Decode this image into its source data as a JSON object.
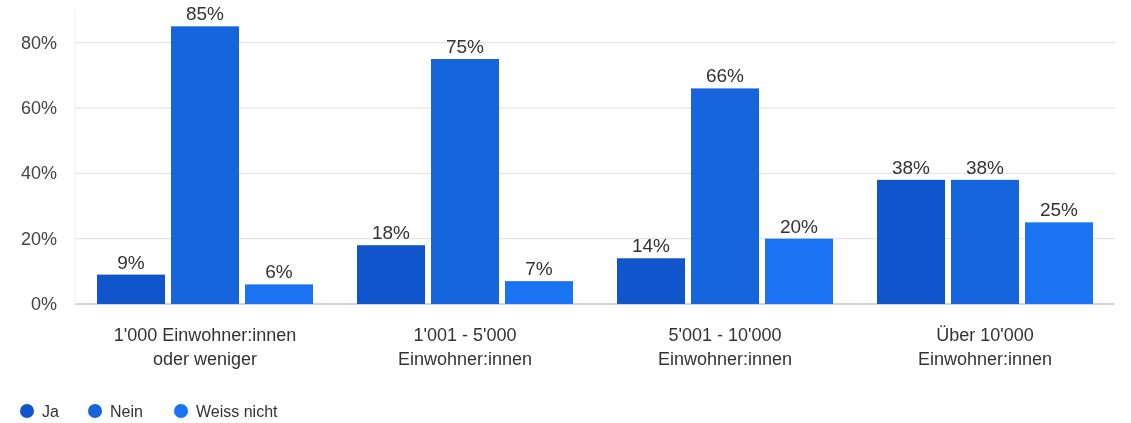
{
  "chart_data": {
    "type": "bar",
    "categories": [
      "1'000 Einwohner:innen\noder weniger",
      "1'001 - 5'000\nEinwohner:innen",
      "5'001 - 10'000\nEinwohner:innen",
      "Über 10'000\nEinwohner:innen"
    ],
    "series": [
      {
        "name": "Ja",
        "color": "#1155cc",
        "values": [
          9,
          18,
          14,
          38
        ],
        "value_labels": [
          "9%",
          "18%",
          "14%",
          "38%"
        ]
      },
      {
        "name": "Nein",
        "color": "#1665dc",
        "values": [
          85,
          75,
          66,
          38
        ],
        "value_labels": [
          "85%",
          "75%",
          "66%",
          "38%"
        ]
      },
      {
        "name": "Weiss nicht",
        "color": "#1a73f2",
        "values": [
          6,
          7,
          20,
          25
        ],
        "value_labels": [
          "6%",
          "7%",
          "20%",
          "25%"
        ]
      }
    ],
    "ylim": [
      0,
      90
    ],
    "yticks": [
      {
        "value": 0,
        "label": "0%"
      },
      {
        "value": 20,
        "label": "20%"
      },
      {
        "value": 40,
        "label": "40%"
      },
      {
        "value": 60,
        "label": "60%"
      },
      {
        "value": 80,
        "label": "80%"
      }
    ],
    "grid": "y",
    "legend": "bottom left"
  }
}
